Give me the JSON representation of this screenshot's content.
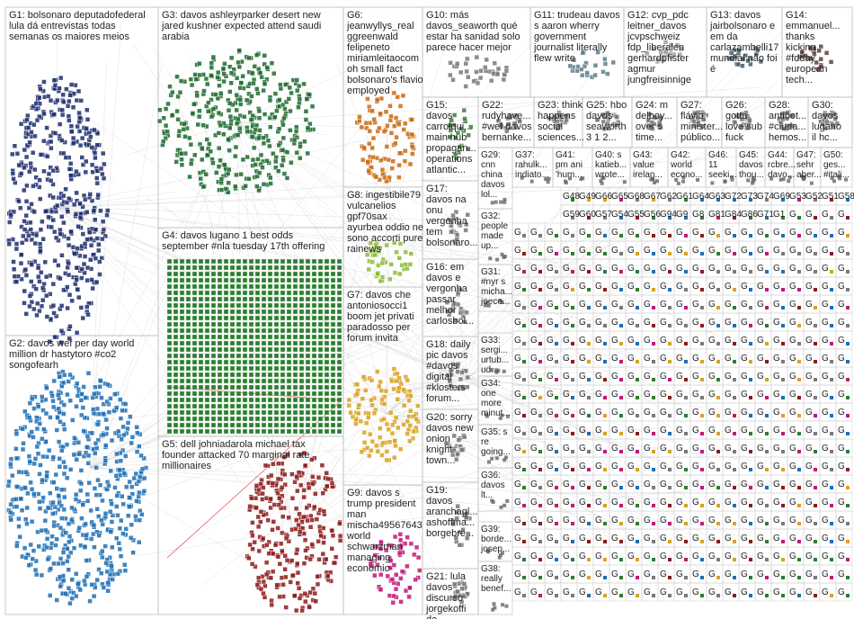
{
  "groups": [
    {
      "id": "G1",
      "label": "G1: bolsonaro deputadofederal lula dá entrevistas todas semanas os maiores meios",
      "color": "#1f2f6e",
      "lines": [
        "G1: bolsonaro deputadofederal",
        "lula dá entrevistas todas",
        "semanas os maiores meios"
      ]
    },
    {
      "id": "G2",
      "label": "G2: davos wef per day world million dr hastytoro #co2 songofearh",
      "color": "#1f6fb5",
      "lines": [
        "G2: davos wef per day world",
        "million dr hastytoro #co2",
        "songofearh"
      ]
    },
    {
      "id": "G3",
      "label": "G3: davos ashleyrparker desert new jared kushner expected attend saudi arabia",
      "color": "#1d6b2e",
      "lines": [
        "G3: davos ashleyrparker desert new",
        "jared kushner expected attend saudi",
        "arabia"
      ]
    },
    {
      "id": "G4",
      "label": "G4: davos lugano 1 best odds september #nla tuesday 17th offering",
      "color": "#2e7d32",
      "lines": [
        "G4: davos lugano 1 best odds",
        "september #nla tuesday 17th offering"
      ]
    },
    {
      "id": "G5",
      "label": "G5: dell johniadarola michael tax founder attacked 70 marginal rate millionaires",
      "color": "#8e1b1b",
      "lines": [
        "G5: dell johniadarola michael tax",
        "founder attacked 70 marginal rate",
        "millionaires"
      ]
    },
    {
      "id": "G6",
      "label": "G6: jeanwyllys_real ggreenwald felipeneto miriamleitaocom oh small fact bolsonaro's flavio employed",
      "color": "#c96a12",
      "lines": [
        "G6:",
        "jeanwyllys_real",
        "ggreenwald",
        "felipeneto",
        "miriamleitaocom",
        "oh small fact",
        "bolsonaro's flavio",
        "employed"
      ]
    },
    {
      "id": "G7",
      "label": "G7: davos che antoniosocci1 boom jet privati paradosso per forum invita",
      "color": "#d9a320",
      "lines": [
        "G7: davos che",
        "antoniosocci1",
        "boom jet privati",
        "paradosso per",
        "forum invita"
      ]
    },
    {
      "id": "G8",
      "label": "G8: ingestibile79 vulcanelios gpf70sax ayurbea oddio ne sono accorti pure rainews",
      "color": "#8fbc3b",
      "lines": [
        "G8: ingestibile79",
        "vulcanelios",
        "gpf70sax",
        "ayurbea oddio ne",
        "sono accorti pure",
        "rainews"
      ]
    },
    {
      "id": "G9",
      "label": "G9: davos s trump president man mischa49567643 world schwarzman managing economic",
      "color": "#c2187a",
      "lines": [
        "G9: davos s",
        "trump president",
        "man",
        "mischa49567643",
        "world",
        "schwarzman",
        "managing",
        "economic"
      ]
    },
    {
      "id": "G10",
      "label": "G10: más davos_seaworth qué estar ha sanidad solo parece hacer mejor",
      "color": "#7a7a7a",
      "lines": [
        "G10: más",
        "davos_seaworth qué",
        "estar ha sanidad solo",
        "parece hacer mejor"
      ]
    },
    {
      "id": "G11",
      "label": "G11: trudeau davos s aaron wherry government journalist literally flew write",
      "color": "#607d8b",
      "lines": [
        "G11: trudeau davos",
        "s aaron wherry",
        "government",
        "journalist literally",
        "flew write"
      ]
    },
    {
      "id": "G12",
      "label": "G12: cvp_pdc leitner_davos jcvpschweiz fdp_liberalen gerhardpfister agmur jungfreisinnige",
      "color": "#9e9e9e",
      "lines": [
        "G12: cvp_pdc",
        "leitner_davos",
        "jcvpschweiz",
        "fdp_liberalen",
        "gerhardpfister",
        "agmur",
        "jungfreisinnige"
      ]
    },
    {
      "id": "G13",
      "label": "G13: davos jairbolsonaro e em da carlazambelli17 mundial não foi é",
      "color": "#455a64",
      "lines": [
        "G13: davos",
        "jairbolsonaro e",
        "em da",
        "carlazambelli17",
        "mundial não foi",
        "é"
      ]
    },
    {
      "id": "G14",
      "label": "G14: emmanuel... thanks kicking #fdday european tech...",
      "color": "#5d4037",
      "lines": [
        "G14:",
        "emmanuel...",
        "thanks",
        "kicking",
        "#fdday",
        "european",
        "tech..."
      ]
    },
    {
      "id": "G15",
      "label": "G15: davos carroll... main hub propagan... operations atlantic...",
      "color": "#3e7d3e",
      "lines": [
        "G15:",
        "davos",
        "carrolqui...",
        "main hub",
        "propagan...",
        "operations",
        "atlantic..."
      ]
    },
    {
      "id": "G16",
      "label": "G16: em davos e vergonha passar melhor carlosbol...",
      "color": "#777777",
      "lines": [
        "G16: em",
        "davos e",
        "vergonha",
        "passar",
        "melhor",
        "carlosbol..."
      ]
    },
    {
      "id": "G17",
      "label": "G17: davos na onu vergonha tem bolsonaro...",
      "color": "#777777",
      "lines": [
        "G17:",
        "davos na",
        "onu",
        "vergonha",
        "tem",
        "bolsonaro..."
      ]
    },
    {
      "id": "G18",
      "label": "G18: daily pic davos #davos digital #klosters forum...",
      "color": "#777777",
      "lines": [
        "G18: daily",
        "pic davos",
        "#davos",
        "digital",
        "#klosters",
        "forum..."
      ]
    },
    {
      "id": "G19",
      "label": "G19: davos aranchagl... ashoffma... borgebre...",
      "color": "#777777",
      "lines": [
        "G19:",
        "davos",
        "aranchagl...",
        "ashoffma...",
        "borgebre..."
      ]
    },
    {
      "id": "G20",
      "label": "G20: sorry davos new onion knight town...",
      "color": "#777777",
      "lines": [
        "G20: sorry",
        "davos new",
        "onion",
        "knight",
        "town..."
      ]
    },
    {
      "id": "G21",
      "label": "G21: lula davos discurso jorgekoffi da...",
      "color": "#777777",
      "lines": [
        "G21: lula",
        "davos",
        "discurso",
        "jorgekoffi",
        "da..."
      ]
    },
    {
      "id": "G22",
      "label": "G22: rudyhave... #wef davos bernanke...",
      "color": "#777777",
      "lines": [
        "G22:",
        "rudyhave...",
        "#wef davos",
        "bernanke..."
      ]
    },
    {
      "id": "G23",
      "label": "G23: think happens social sciences...",
      "color": "#777777",
      "lines": [
        "G23: think",
        "happens",
        "social",
        "sciences..."
      ]
    },
    {
      "id": "G24",
      "label": "G24: m delboy... over s time...",
      "color": "#777777",
      "lines": [
        "G24: m",
        "delboy...",
        "over s",
        "time..."
      ]
    },
    {
      "id": "G25",
      "label": "G25: hbo davos seaworth 3 1 2...",
      "color": "#777777",
      "lines": [
        "G25: hbo",
        "davos",
        "seaworth",
        "3 1 2..."
      ]
    },
    {
      "id": "G26",
      "label": "G26: gotta love sub fuck",
      "color": "#777777",
      "lines": [
        "G26:",
        "gotta",
        "love sub",
        "fuck"
      ]
    },
    {
      "id": "G27",
      "label": "G27: flávio minister... público...",
      "color": "#777777",
      "lines": [
        "G27:",
        "flávio",
        "minister...",
        "público..."
      ]
    },
    {
      "id": "G28",
      "label": "G28: antibot... #ciuda... hemos...",
      "color": "#777777",
      "lines": [
        "G28:",
        "antibot...",
        "#ciuda...",
        "hemos..."
      ]
    },
    {
      "id": "G30",
      "label": "G30: davos lugano il hc...",
      "color": "#777777",
      "lines": [
        "G30:",
        "davos",
        "lugano",
        "il hc..."
      ]
    }
  ],
  "small_groups": [
    {
      "id": "G29",
      "lines": [
        "G29:",
        "cnn",
        "china",
        "davos",
        "lol..."
      ]
    },
    {
      "id": "G37",
      "lines": [
        "G37:",
        "rahulk...",
        "indiato..."
      ]
    },
    {
      "id": "G41",
      "lines": [
        "G41:",
        "pm ani",
        "'hum..."
      ]
    },
    {
      "id": "G40",
      "lines": [
        "G40: s",
        "katieb...",
        "wrote..."
      ]
    },
    {
      "id": "G43",
      "lines": [
        "G43:",
        "value",
        "irelan..."
      ]
    },
    {
      "id": "G42",
      "lines": [
        "G42:",
        "world",
        "econo..."
      ]
    },
    {
      "id": "G46",
      "lines": [
        "G46:",
        "11",
        "seeki..."
      ]
    },
    {
      "id": "G45",
      "lines": [
        "G45:",
        "davos",
        "thou..."
      ]
    },
    {
      "id": "G44",
      "lines": [
        "G44:",
        "rcbre...",
        "davo..."
      ]
    },
    {
      "id": "G47",
      "lines": [
        "G47:",
        "sehr",
        "aber..."
      ]
    },
    {
      "id": "G50",
      "lines": [
        "G50:",
        "ges...",
        "#itali..."
      ]
    },
    {
      "id": "G32",
      "lines": [
        "G32:",
        "people",
        "made",
        "up..."
      ]
    },
    {
      "id": "G31",
      "lines": [
        "G31:",
        "#nyr s",
        "micha...",
        "joeco..."
      ]
    },
    {
      "id": "G33",
      "lines": [
        "G33:",
        "sergi...",
        "urtub...",
        "ud..."
      ]
    },
    {
      "id": "G34",
      "lines": [
        "G34:",
        "one",
        "more",
        "minut..."
      ]
    },
    {
      "id": "G35",
      "lines": [
        "G35: s",
        "re",
        "going..."
      ]
    },
    {
      "id": "G36",
      "lines": [
        "G36:",
        "davos",
        "lt..."
      ]
    },
    {
      "id": "G39",
      "lines": [
        "G39:",
        "borde...",
        "josep..."
      ]
    },
    {
      "id": "G38",
      "lines": [
        "G38:",
        "really",
        "benef..."
      ]
    }
  ],
  "grid_ids": [
    "G48",
    "G49",
    "G66",
    "G65",
    "G68",
    "G67",
    "G62",
    "G61",
    "G64",
    "G63",
    "G72",
    "G73",
    "G74",
    "G69",
    "G53",
    "G52",
    "G51",
    "G58",
    "G59",
    "G60",
    "G57",
    "G54",
    "G55",
    "G56",
    "G94",
    "G9",
    "G8",
    "G81",
    "G84",
    "G86",
    "G71",
    "G1"
  ],
  "grid_label": "G"
}
